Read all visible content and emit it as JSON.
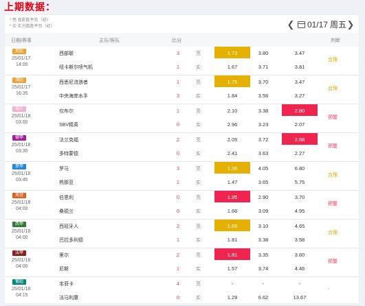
{
  "title": "上期数据：",
  "notes": [
    "* 亮  竞彩胜平负（初）",
    "* 实  实力数胜平负（初）"
  ],
  "date_nav": {
    "date": "01/17",
    "weekday": "周五"
  },
  "headers": {
    "date": "日期/赛事",
    "teams": "主队/客队",
    "score": "比分",
    "verdict": "判断"
  },
  "colors": {
    "gold": "#e6b000",
    "red": "#f0254f"
  },
  "matches": [
    {
      "league": "英超",
      "league_color": "#f0a030",
      "date": "25/01/17",
      "time": "14:00",
      "home": "西部联",
      "away": "纽卡斯尔喷气机",
      "hs": "3",
      "as": "1",
      "odds1": [
        "1.73",
        "3.80",
        "3.47"
      ],
      "odds2": [
        "1.67",
        "3.71",
        "3.81"
      ],
      "hl": 0,
      "hl_color": "gold",
      "verdict": "合理",
      "vtype": "ok"
    },
    {
      "league": "澳超",
      "league_color": "#f0a030",
      "date": "25/01/17",
      "time": "16:35",
      "home": "西悉尼流浪者",
      "away": "中央海岸水手",
      "hs": "1",
      "as": "3",
      "odds1": [
        "1.75",
        "3.70",
        "3.47"
      ],
      "odds2": [
        "1.84",
        "3.56",
        "3.27"
      ],
      "hl": 0,
      "hl_color": "gold",
      "verdict": "合理",
      "vtype": "ok"
    },
    {
      "league": "荷乙",
      "league_color": "#f4b0d0",
      "date": "25/01/18",
      "time": "03:00",
      "home": "坎布尔",
      "away": "SBV精英",
      "hs": "1",
      "as": "0",
      "odds1": [
        "2.10",
        "3.38",
        "2.80"
      ],
      "odds2": [
        "2.96",
        "3.23",
        "2.07"
      ],
      "hl": 2,
      "hl_color": "red",
      "verdict": "预警",
      "vtype": "warn"
    },
    {
      "league": "德甲",
      "league_color": "#a020a0",
      "date": "25/01/18",
      "time": "03:30",
      "home": "法兰克福",
      "away": "多特蒙德",
      "hs": "2",
      "as": "0",
      "odds1": [
        "2.05",
        "3.72",
        "2.68"
      ],
      "odds2": [
        "2.41",
        "3.63",
        "2.27"
      ],
      "hl": 2,
      "hl_color": "red",
      "verdict": "预警",
      "vtype": "warn"
    },
    {
      "league": "意甲",
      "league_color": "#1e88e5",
      "date": "25/01/18",
      "time": "03:45",
      "home": "罗马",
      "away": "热那亚",
      "hs": "3",
      "as": "1",
      "odds1": [
        "1.36",
        "4.05",
        "6.80"
      ],
      "odds2": [
        "1.47",
        "3.65",
        "5.75"
      ],
      "hl": 0,
      "hl_color": "gold",
      "verdict": "合理",
      "vtype": "ok"
    },
    {
      "league": "英冠",
      "league_color": "#e06020",
      "date": "25/01/18",
      "time": "04:00",
      "home": "伯恩利",
      "away": "桑德兰",
      "hs": "0",
      "as": "0",
      "odds1": [
        "1.95",
        "2.90",
        "3.70"
      ],
      "odds2": [
        "1.66",
        "3.09",
        "4.95"
      ],
      "hl": 0,
      "hl_color": "red",
      "verdict": "预警",
      "vtype": "warn"
    },
    {
      "league": "西甲",
      "league_color": "#2e7d32",
      "date": "25/01/18",
      "time": "04:00",
      "home": "西班牙人",
      "away": "巴拉多利德",
      "hs": "2",
      "as": "1",
      "odds1": [
        "1.69",
        "3.10",
        "4.65"
      ],
      "odds2": [
        "1.81",
        "3.38",
        "3.58"
      ],
      "hl": 0,
      "hl_color": "gold",
      "verdict": "合理",
      "vtype": "ok"
    },
    {
      "league": "法甲",
      "league_color": "#8a2020",
      "date": "25/01/18",
      "time": "04:00",
      "home": "里尔",
      "away": "尼斯",
      "hs": "2",
      "as": "1",
      "odds1": [
        "1.81",
        "3.35",
        "3.60"
      ],
      "odds2": [
        "1.57",
        "3.74",
        "4.46"
      ],
      "hl": 0,
      "hl_color": "red",
      "verdict": "预警",
      "vtype": "warn"
    },
    {
      "league": "葡超",
      "league_color": "#00897b",
      "date": "25/01/18",
      "time": "04:15",
      "home": "本菲卡",
      "away": "法马利康",
      "hs": "4",
      "as": "0",
      "odds1": [
        "-",
        "-",
        "-"
      ],
      "odds2": [
        "1.29",
        "6.62",
        "13.67"
      ],
      "hl": -1,
      "hl_color": "gold",
      "verdict": "-",
      "vtype": "dash"
    }
  ]
}
